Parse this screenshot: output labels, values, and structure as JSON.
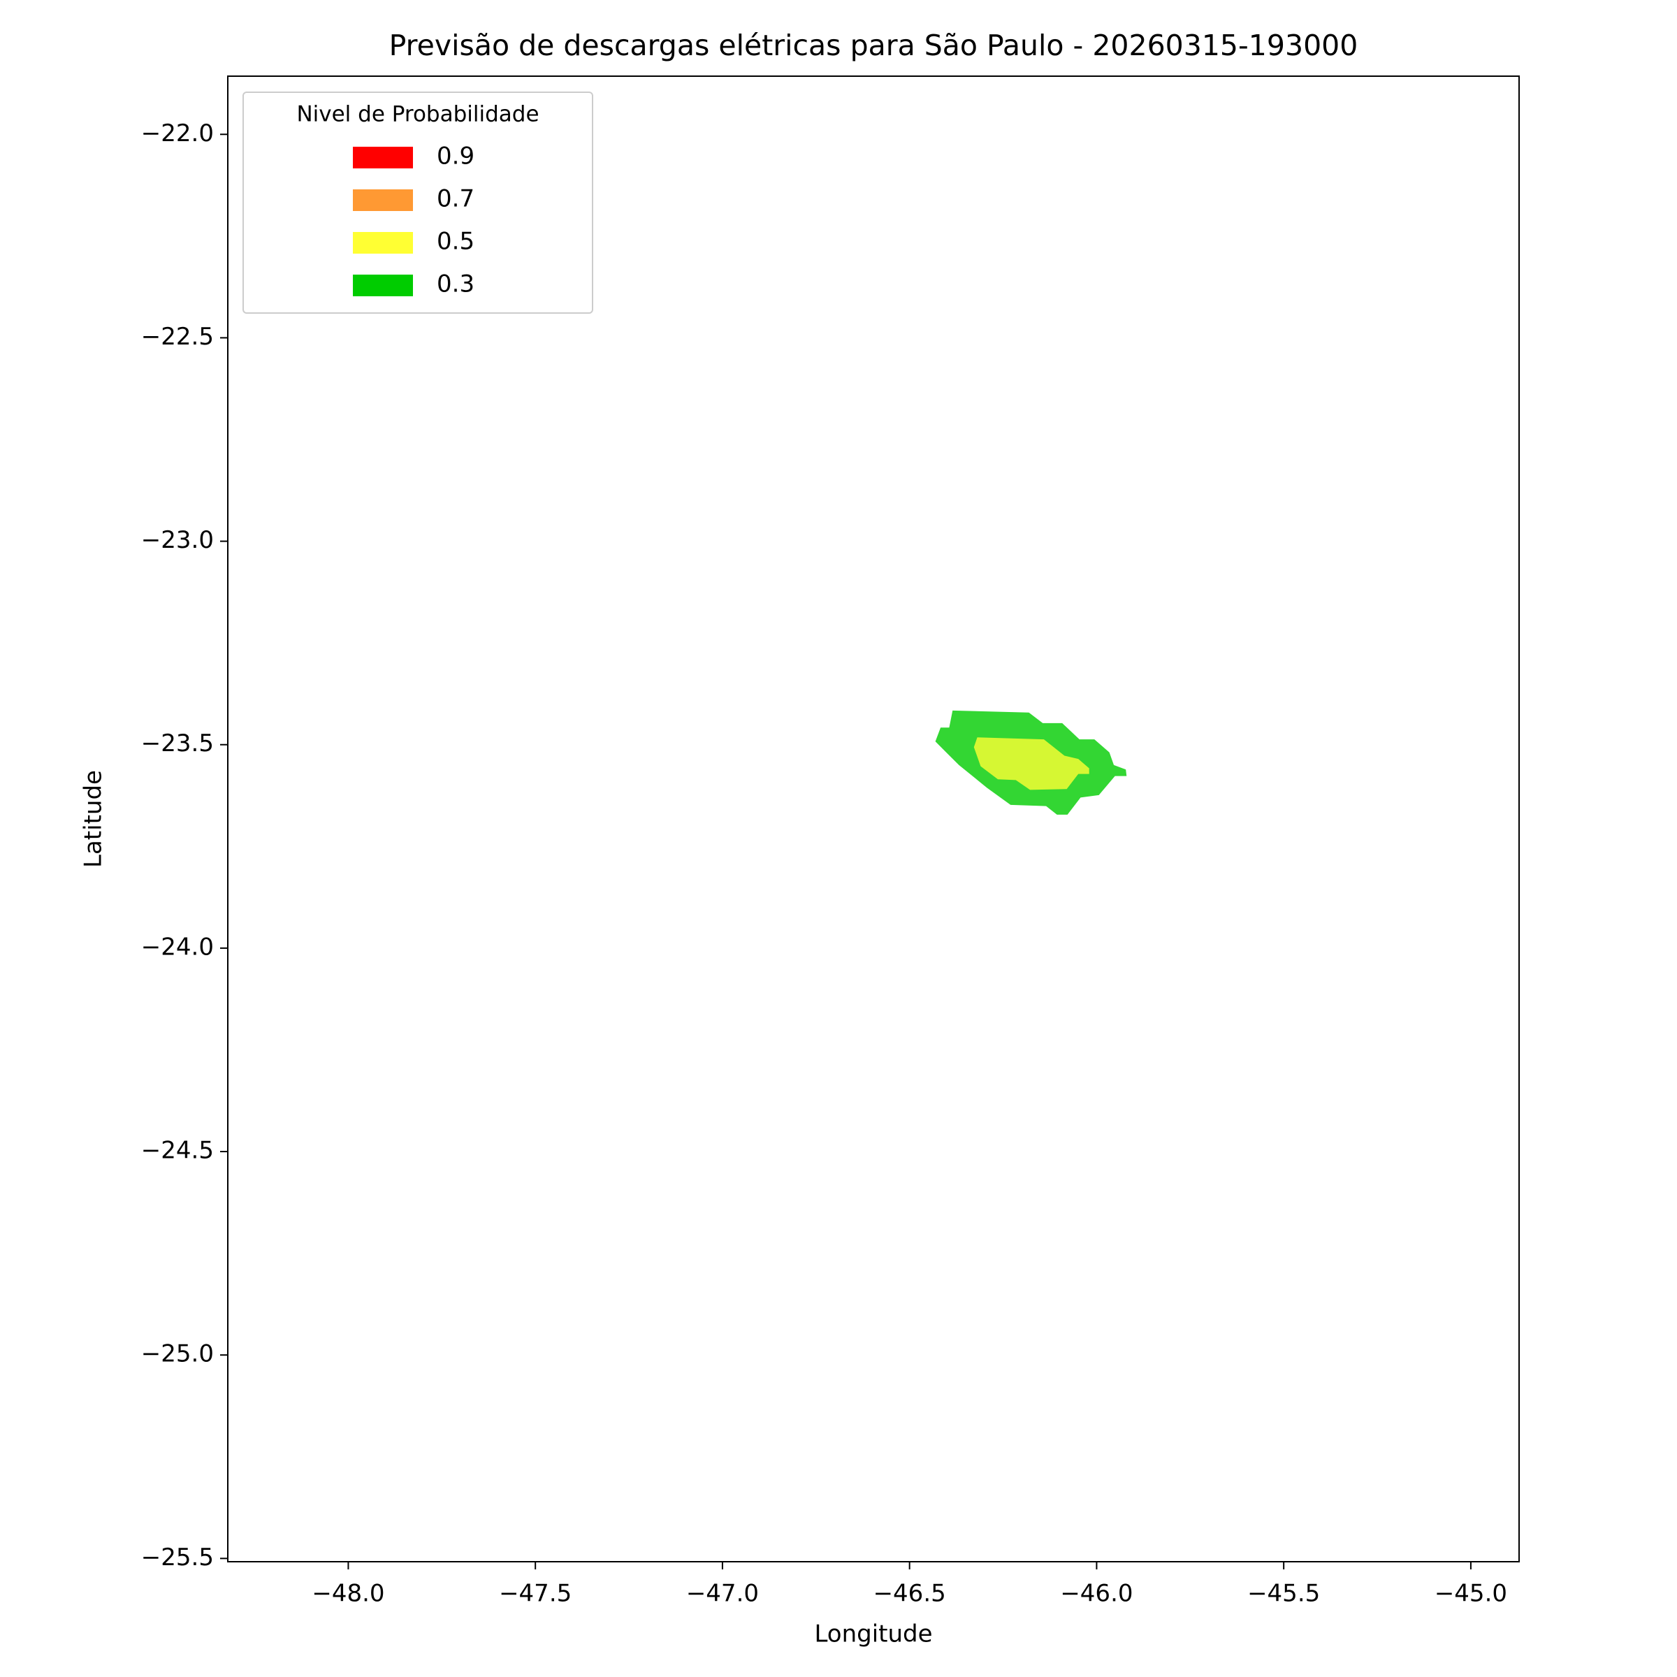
{
  "chart_data": {
    "type": "contour",
    "title": "Previsão de descargas elétricas para São Paulo - 20260315-193000",
    "xlabel": "Longitude",
    "ylabel": "Latitude",
    "xlim": [
      -48.322,
      -44.871
    ],
    "ylim": [
      -25.508,
      -21.857
    ],
    "xticks": [
      {
        "value": -48,
        "label": "−48.0"
      },
      {
        "value": -47.5,
        "label": "−47.5"
      },
      {
        "value": -47,
        "label": "−47.0"
      },
      {
        "value": -46.5,
        "label": "−46.5"
      },
      {
        "value": -46,
        "label": "−46.0"
      },
      {
        "value": -45.5,
        "label": "−45.5"
      },
      {
        "value": -45,
        "label": "−45.0"
      }
    ],
    "yticks": [
      {
        "value": -22,
        "label": "−22.0"
      },
      {
        "value": -22.5,
        "label": "−22.5"
      },
      {
        "value": -23,
        "label": "−23.0"
      },
      {
        "value": -23.5,
        "label": "−23.5"
      },
      {
        "value": -24,
        "label": "−24.0"
      },
      {
        "value": -24.5,
        "label": "−24.5"
      },
      {
        "value": -25,
        "label": "−25.0"
      },
      {
        "value": -25.5,
        "label": "−25.5"
      }
    ],
    "grid": false,
    "alpha": 0.8,
    "legend_title": "Nivel de Probabilidade",
    "legend_loc": "upper left",
    "series": [
      {
        "name": "0.9",
        "color": "#ff0000",
        "x": [],
        "y": []
      },
      {
        "name": "0.7",
        "color": "#ff9933",
        "x": [],
        "y": []
      },
      {
        "name": "0.5",
        "color": "#ffff33",
        "x": [
          -46.319,
          -46.141,
          -46.086,
          -46.049,
          -46.02,
          -46.02,
          -46.049,
          -46.08,
          -46.178,
          -46.216,
          -46.264,
          -46.31,
          -46.328
        ],
        "y": [
          -23.482,
          -23.487,
          -23.527,
          -23.535,
          -23.558,
          -23.572,
          -23.572,
          -23.609,
          -23.611,
          -23.587,
          -23.585,
          -23.553,
          -23.506
        ]
      },
      {
        "name": "0.3",
        "color": "#00cc00",
        "x": [
          -46.385,
          -46.181,
          -46.144,
          -46.092,
          -46.046,
          -46.006,
          -45.966,
          -45.954,
          -45.922,
          -45.92,
          -45.951,
          -45.994,
          -46.043,
          -46.078,
          -46.106,
          -46.135,
          -46.23,
          -46.293,
          -46.368,
          -46.402,
          -46.431,
          -46.417,
          -46.394
        ],
        "y": [
          -23.416,
          -23.421,
          -23.447,
          -23.447,
          -23.487,
          -23.487,
          -23.519,
          -23.55,
          -23.561,
          -23.577,
          -23.577,
          -23.624,
          -23.63,
          -23.672,
          -23.672,
          -23.651,
          -23.648,
          -23.606,
          -23.55,
          -23.519,
          -23.492,
          -23.458,
          -23.458
        ]
      }
    ]
  }
}
